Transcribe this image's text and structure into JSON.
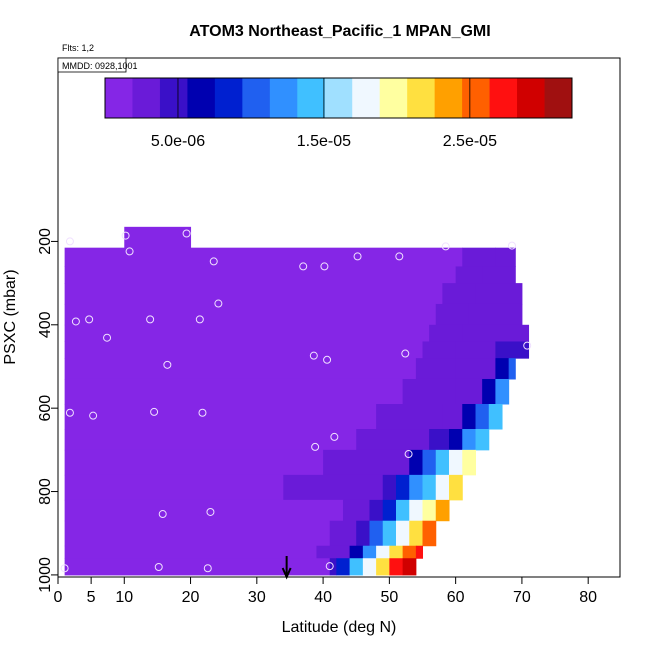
{
  "chart_data": {
    "type": "heatmap",
    "title": "ATOM3 Northeast_Pacific_1 MPAN_GMI",
    "subtitle": "Flts: 1,2",
    "legend_text": "MMDD: 0928,1001",
    "x_label": "Latitude (deg N)",
    "y_label": "PSXC (mbar)",
    "xlim": [
      0,
      84.8
    ],
    "ylim": [
      1005,
      -240
    ],
    "xticks": [
      0,
      5,
      10,
      20,
      30,
      40,
      50,
      60,
      70,
      80
    ],
    "yticks": [
      200,
      400,
      600,
      800,
      1000
    ],
    "clim": [
      0,
      3.2e-05
    ],
    "cticks": [
      {
        "value": 5e-06,
        "label": "5.0e-06"
      },
      {
        "value": 1.5e-05,
        "label": "1.5e-05"
      },
      {
        "value": 2.5e-05,
        "label": "2.5e-05"
      }
    ],
    "palette": [
      "#8526e6",
      "#6a1bd8",
      "#3a10c8",
      "#0000b0",
      "#0020d0",
      "#2060f0",
      "#3090ff",
      "#40c0ff",
      "#a0e0ff",
      "#f0f8ff",
      "#ffffa0",
      "#ffe040",
      "#ffa000",
      "#ff6000",
      "#ff1010",
      "#d00000",
      "#a01010"
    ],
    "rows": [
      {
        "p": [
          165,
          215
        ],
        "lat": [
          10,
          20
        ],
        "values": [
          1.5e-06
        ]
      },
      {
        "p": [
          215,
          260
        ],
        "lat": [
          1,
          61,
          66,
          69
        ],
        "values": [
          1.5e-06,
          2.5e-06,
          3e-06
        ]
      },
      {
        "p": [
          260,
          300
        ],
        "lat": [
          1,
          60,
          64,
          69
        ],
        "values": [
          1.5e-06,
          2.5e-06,
          3e-06
        ]
      },
      {
        "p": [
          300,
          350
        ],
        "lat": [
          1,
          58,
          63,
          70
        ],
        "values": [
          1.5e-06,
          2.5e-06,
          3e-06
        ]
      },
      {
        "p": [
          350,
          400
        ],
        "lat": [
          1,
          57,
          62,
          70
        ],
        "values": [
          1.5e-06,
          2.5e-06,
          3e-06
        ]
      },
      {
        "p": [
          400,
          440
        ],
        "lat": [
          1,
          56,
          61,
          71
        ],
        "values": [
          1.5e-06,
          2.5e-06,
          3e-06
        ]
      },
      {
        "p": [
          440,
          480
        ],
        "lat": [
          1,
          55,
          60,
          66,
          71
        ],
        "values": [
          1.5e-06,
          2.5e-06,
          3e-06,
          4e-06
        ]
      },
      {
        "p": [
          480,
          530
        ],
        "lat": [
          1,
          54,
          60,
          66,
          68,
          69
        ],
        "values": [
          1.5e-06,
          2.5e-06,
          3e-06,
          6e-06,
          1e-05
        ]
      },
      {
        "p": [
          530,
          590
        ],
        "lat": [
          1,
          52,
          60,
          64,
          66,
          68
        ],
        "values": [
          1.5e-06,
          2.5e-06,
          3e-06,
          6e-06,
          1.2e-05
        ]
      },
      {
        "p": [
          590,
          650
        ],
        "lat": [
          1,
          48,
          58,
          61,
          63,
          65,
          67
        ],
        "values": [
          1.5e-06,
          2.5e-06,
          3e-06,
          6e-06,
          1e-05,
          1.4e-05
        ]
      },
      {
        "p": [
          650,
          700
        ],
        "lat": [
          1,
          45,
          56,
          59,
          61,
          63,
          65
        ],
        "values": [
          1.5e-06,
          2.5e-06,
          4e-06,
          7e-06,
          1.2e-05,
          1.5e-05
        ]
      },
      {
        "p": [
          700,
          760
        ],
        "lat": [
          1,
          40,
          53,
          55,
          57,
          59,
          61,
          63
        ],
        "values": [
          1.5e-06,
          2.5e-06,
          6e-06,
          1e-05,
          1.4e-05,
          1.7e-05,
          2e-05
        ]
      },
      {
        "p": [
          760,
          820
        ],
        "lat": [
          1,
          34,
          49,
          51,
          53,
          55,
          57,
          59,
          61
        ],
        "values": [
          1.5e-06,
          2.5e-06,
          5e-06,
          9e-06,
          1.2e-05,
          1.5e-05,
          1.7e-05,
          2.1e-05
        ]
      },
      {
        "p": [
          820,
          870
        ],
        "lat": [
          1,
          43,
          47,
          49,
          51,
          53,
          55,
          57,
          59
        ],
        "values": [
          1.5e-06,
          2.5e-06,
          5e-06,
          9e-06,
          1.4e-05,
          1.7e-05,
          2e-05,
          2.3e-05
        ]
      },
      {
        "p": [
          870,
          930
        ],
        "lat": [
          1,
          41,
          45,
          47,
          49,
          51,
          53,
          55,
          57
        ],
        "values": [
          1.5e-06,
          2.5e-06,
          5e-06,
          1e-05,
          1.5e-05,
          1.8e-05,
          2.2e-05,
          2.5e-05
        ]
      },
      {
        "p": [
          930,
          960
        ],
        "lat": [
          1,
          39,
          44,
          46,
          48,
          50,
          52,
          54,
          55
        ],
        "values": [
          1.5e-06,
          2.5e-06,
          6e-06,
          1.2e-05,
          1.7e-05,
          2.1e-05,
          2.6e-05,
          2.8e-05
        ]
      },
      {
        "p": [
          960,
          1000
        ],
        "lat": [
          1,
          41,
          42,
          44,
          46,
          48,
          50,
          52,
          54
        ],
        "values": [
          1.5e-06,
          4e-06,
          8e-06,
          1.4e-05,
          1.8e-05,
          2.2e-05,
          2.7e-05,
          3e-05
        ]
      }
    ],
    "points": {
      "x": [
        1.8,
        10.2,
        10.8,
        19.4,
        23.5,
        24.2,
        37,
        40.2,
        45.2,
        51.5,
        58.5,
        68.5,
        2.7,
        4.7,
        7.4,
        13.9,
        21.4,
        16.5,
        38.6,
        40.6,
        52.4,
        70.8,
        1.8,
        5.3,
        14.5,
        21.8,
        41.7,
        38.8,
        52.9,
        15.8,
        23,
        1,
        15.2,
        22.6,
        41
      ],
      "y": [
        200,
        186,
        224,
        181,
        248,
        349,
        260,
        260,
        236,
        236,
        212,
        210,
        392,
        387,
        431,
        387,
        387,
        496,
        474,
        484,
        469,
        450,
        611,
        618,
        609,
        611,
        669,
        693,
        710,
        854,
        849,
        984,
        981,
        984,
        979
      ]
    },
    "arrow_x": 34.5
  }
}
